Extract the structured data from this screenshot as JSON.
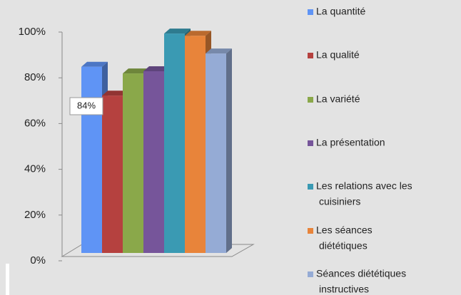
{
  "chart_data": {
    "type": "bar",
    "series": [
      {
        "name": "La quantité",
        "color": "#5f94f5",
        "values": [
          84
        ],
        "value_labels": [
          "84%"
        ]
      },
      {
        "name": "La qualité",
        "color": "#b5413f",
        "values": [
          71
        ]
      },
      {
        "name": "La variété",
        "color": "#8aa84a",
        "values": [
          81
        ]
      },
      {
        "name": "La présentation",
        "color": "#76559a",
        "values": [
          82
        ]
      },
      {
        "name": [
          "Les relations avec les",
          "cuisiniers"
        ],
        "color": "#3a9ab3",
        "values": [
          99
        ]
      },
      {
        "name": [
          "Les séances",
          "diététiques"
        ],
        "color": "#e8843a",
        "values": [
          98
        ]
      },
      {
        "name": [
          "Séances diététiques",
          "instructives"
        ],
        "color": "#95abd5",
        "values": [
          90
        ]
      }
    ],
    "ylim": [
      0,
      100
    ],
    "yticks": [
      {
        "value": 0,
        "label": "0%"
      },
      {
        "value": 20,
        "label": "20%"
      },
      {
        "value": 40,
        "label": "40%"
      },
      {
        "value": 60,
        "label": "60%"
      },
      {
        "value": 80,
        "label": "80%"
      },
      {
        "value": 100,
        "label": "100%"
      }
    ]
  }
}
